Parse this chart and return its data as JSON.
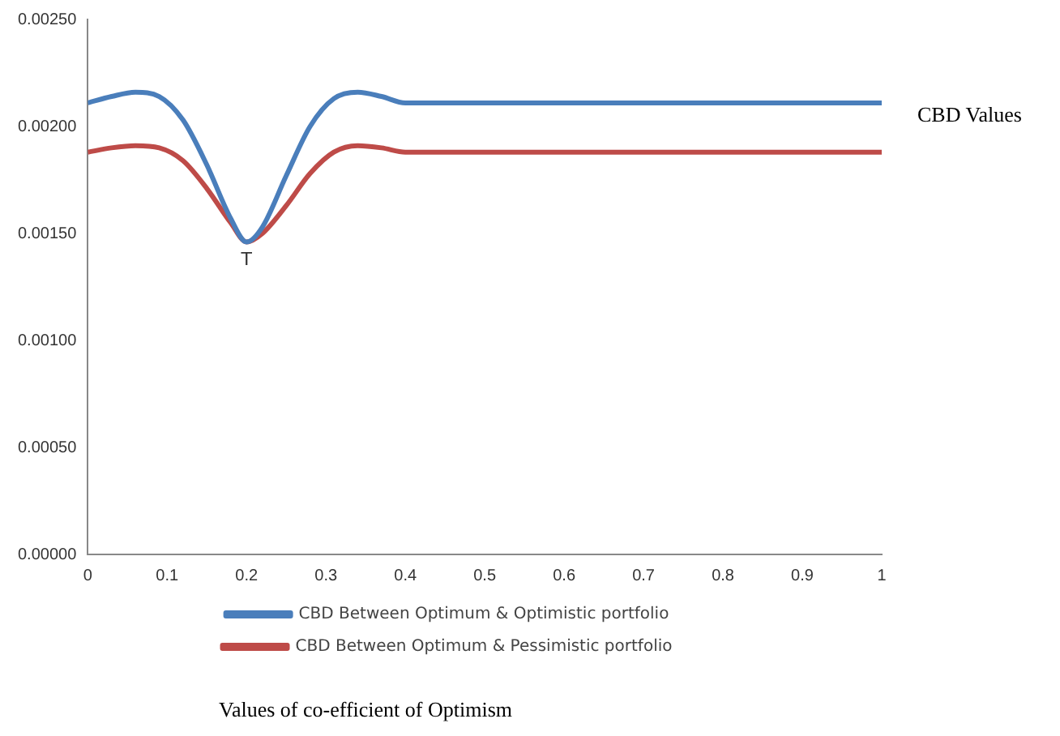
{
  "chart_data": {
    "type": "line",
    "ylabel": "CBD Values",
    "x": [
      0,
      0.03,
      0.06,
      0.09,
      0.12,
      0.15,
      0.18,
      0.2,
      0.22,
      0.25,
      0.28,
      0.31,
      0.34,
      0.37,
      0.4,
      1
    ],
    "series": [
      {
        "name": "CBD Between Optimum & Optimistic portfolio",
        "color": "#4a7ebb",
        "values": [
          0.00211,
          0.00214,
          0.00216,
          0.00214,
          0.00203,
          0.00182,
          0.00157,
          0.00146,
          0.00153,
          0.00177,
          0.002,
          0.00213,
          0.00216,
          0.00214,
          0.00211,
          0.00211
        ]
      },
      {
        "name": "CBD Between Optimum & Pessimistic portfolio",
        "color": "#be4b48",
        "values": [
          0.00188,
          0.0019,
          0.00191,
          0.0019,
          0.00184,
          0.00171,
          0.00155,
          0.00146,
          0.0015,
          0.00163,
          0.00178,
          0.00188,
          0.00191,
          0.0019,
          0.00188,
          0.00188
        ]
      }
    ],
    "xlim": [
      0,
      1
    ],
    "xticks": [
      0,
      0.1,
      0.2,
      0.3,
      0.4,
      0.5,
      0.6,
      0.7,
      0.8,
      0.9,
      1
    ],
    "ylim": [
      0,
      0.0025
    ],
    "yticks": [
      {
        "value": 0,
        "label": "0.00000"
      },
      {
        "value": 0.0005,
        "label": "0.00050"
      },
      {
        "value": 0.001,
        "label": "0.00100"
      },
      {
        "value": 0.0015,
        "label": "0.00150"
      },
      {
        "value": 0.002,
        "label": "0.00200"
      },
      {
        "value": 0.0025,
        "label": "0.00250"
      }
    ],
    "annotations": [
      {
        "text": "T",
        "x": 0.2,
        "y": 0.00146
      },
      "Values of co-efficient of Optimism"
    ],
    "grid": false,
    "legend": "bottom",
    "marker": "none",
    "line_style": "solid"
  }
}
